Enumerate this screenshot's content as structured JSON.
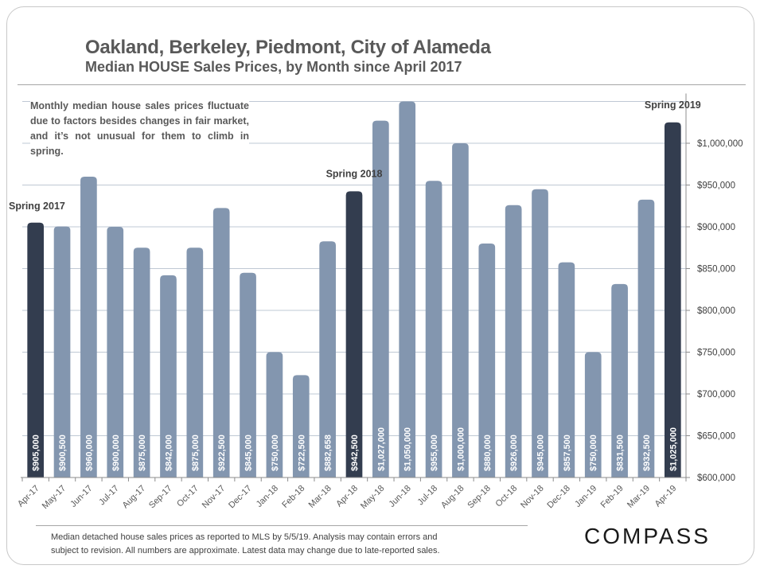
{
  "header": {
    "title": "Oakland, Berkeley, Piedmont, City of Alameda",
    "subtitle": "Median HOUSE Sales Prices, by Month since April 2017"
  },
  "note": "Monthly median house sales prices fluctuate due to factors besides changes in fair market, and it’s not unusual for them to climb in spring.",
  "footer": {
    "line1": "Median detached house sales prices as reported to MLS by 5/5/19.  Analysis may contain errors and",
    "line2": "subject to revision. All numbers are approximate. Latest data may change due to late-reported sales."
  },
  "logo": "COMPASS",
  "colors": {
    "bar": "#8396af",
    "highlight": "#333d4f",
    "grid": "#bfc8d4",
    "axis": "#8c8c8c"
  },
  "chart_data": {
    "type": "bar",
    "title": "Oakland, Berkeley, Piedmont, City of Alameda",
    "subtitle": "Median HOUSE Sales Prices, by Month since April 2017",
    "xlabel": "",
    "ylabel": "",
    "ylim": [
      600000,
      1050000
    ],
    "y_axis_side": "right",
    "grid": true,
    "yticks": [
      600000,
      650000,
      700000,
      750000,
      800000,
      850000,
      900000,
      950000,
      1000000
    ],
    "ytick_labels": [
      "$600,000",
      "$650,000",
      "$700,000",
      "$750,000",
      "$800,000",
      "$850,000",
      "$900,000",
      "$950,000",
      "$1,000,000"
    ],
    "categories": [
      "Apr-17",
      "May-17",
      "Jun-17",
      "Jul-17",
      "Aug-17",
      "Sep-17",
      "Oct-17",
      "Nov-17",
      "Dec-17",
      "Jan-18",
      "Feb-18",
      "Mar-18",
      "Apr-18",
      "May-18",
      "Jun-18",
      "Jul-18",
      "Aug-18",
      "Sep-18",
      "Oct-18",
      "Nov-18",
      "Dec-18",
      "Jan-19",
      "Feb-19",
      "Mar-19",
      "Apr-19"
    ],
    "values": [
      905000,
      900500,
      960000,
      900000,
      875000,
      842000,
      875000,
      922500,
      845000,
      750000,
      722500,
      882658,
      942500,
      1027000,
      1050000,
      955000,
      1000000,
      880000,
      926000,
      945000,
      857500,
      750000,
      831500,
      932500,
      1025000
    ],
    "value_labels": [
      "$905,000",
      "$900,500",
      "$960,000",
      "$900,000",
      "$875,000",
      "$842,000",
      "$875,000",
      "$922,500",
      "$845,000",
      "$750,000",
      "$722,500",
      "$882,658",
      "$942,500",
      "$1,027,000",
      "$1,050,000",
      "$955,000",
      "$1,000,000",
      "$880,000",
      "$926,000",
      "$945,000",
      "$857,500",
      "$750,000",
      "$831,500",
      "$932,500",
      "$1,025,000"
    ],
    "highlighted": [
      0,
      12,
      24
    ],
    "annotations": [
      {
        "text": "Spring 2017",
        "index": 0
      },
      {
        "text": "Spring 2018",
        "index": 12
      },
      {
        "text": "Spring 2019",
        "index": 24
      }
    ]
  }
}
